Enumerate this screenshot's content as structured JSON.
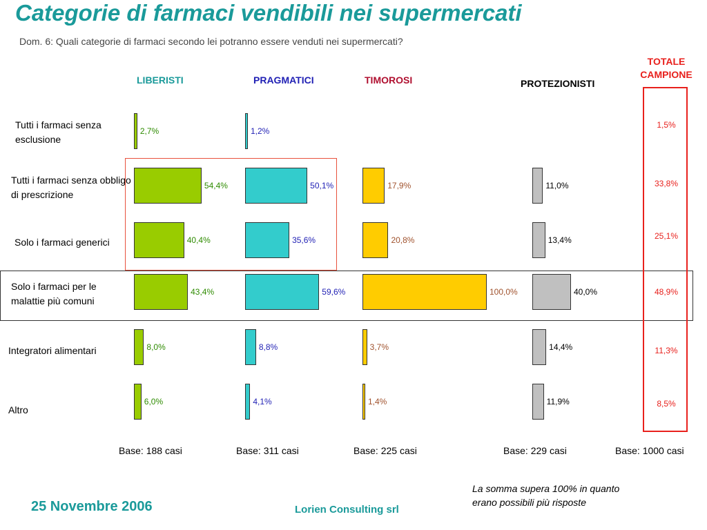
{
  "title": "Categorie di farmaci vendibili nei supermercati",
  "subtitle": "Dom. 6: Quali categorie di farmaci secondo lei potranno essere venduti nei supermercati?",
  "total": {
    "label_line1": "TOTALE",
    "label_line2": "CAMPIONE",
    "values": [
      "1,5%",
      "33,8%",
      "25,1%",
      "48,9%",
      "11,3%",
      "8,5%"
    ],
    "base": "Base: 1000 casi",
    "color": "#e8201c"
  },
  "rows": [
    "Tutti i farmaci senza esclusione",
    "Tutti i farmaci senza obbligo di prescrizione",
    "Solo i farmaci generici",
    "Solo i farmaci per le malattie più comuni",
    "Integratori alimentari",
    "Altro"
  ],
  "groups": [
    {
      "label": "LIBERISTI",
      "color": "#99cc00",
      "text_color": "#2e8b00",
      "label_color": "#1a9a9a",
      "base": "Base: 188 casi",
      "value_labels": [
        "2,7%",
        "54,4%",
        "40,4%",
        "43,4%",
        "8,0%",
        "6,0%"
      ]
    },
    {
      "label": "PRAGMATICI",
      "color": "#33cccc",
      "text_color": "#1f1fb4",
      "label_color": "#1f1fb4",
      "base": "Base: 311 casi",
      "value_labels": [
        "1,2%",
        "50,1%",
        "35,6%",
        "59,6%",
        "8,8%",
        "4,1%"
      ]
    },
    {
      "label": "TIMOROSI",
      "color": "#ffcc00",
      "text_color": "#a0522d",
      "label_color": "#b01030",
      "base": "Base: 225 casi",
      "value_labels": [
        "",
        "17,9%",
        "20,8%",
        "100,0%",
        "3,7%",
        "1,4%"
      ]
    },
    {
      "label": "PROTEZIONISTI",
      "color": "#c0c0c0",
      "text_color": "#000000",
      "label_color": "#000000",
      "base": "Base: 229 casi",
      "value_labels": [
        "",
        "11,0%",
        "13,4%",
        "40,0%",
        "14,4%",
        "11,9%"
      ]
    }
  ],
  "chart_data": {
    "type": "bar",
    "title": "Categorie di farmaci vendibili nei supermercati",
    "categories": [
      "Tutti i farmaci senza esclusione",
      "Tutti i farmaci senza obbligo di prescrizione",
      "Solo i farmaci generici",
      "Solo i farmaci per le malattie più comuni",
      "Integratori alimentari",
      "Altro"
    ],
    "series": [
      {
        "name": "LIBERISTI",
        "values": [
          2.7,
          54.4,
          40.4,
          43.4,
          8.0,
          6.0
        ]
      },
      {
        "name": "PRAGMATICI",
        "values": [
          1.2,
          50.1,
          35.6,
          59.6,
          8.8,
          4.1
        ]
      },
      {
        "name": "TIMOROSI",
        "values": [
          null,
          17.9,
          20.8,
          100.0,
          3.7,
          1.4
        ]
      },
      {
        "name": "PROTEZIONISTI",
        "values": [
          null,
          11.0,
          13.4,
          40.0,
          14.4,
          11.9
        ]
      },
      {
        "name": "TOTALE CAMPIONE",
        "values": [
          1.5,
          33.8,
          25.1,
          48.9,
          11.3,
          8.5
        ]
      }
    ],
    "orientation": "horizontal",
    "unit": "%"
  },
  "note_line1": "La somma supera 100% in quanto",
  "note_line2": "erano possibili più risposte",
  "date": "25 Novembre 2006",
  "footer": "Lorien Consulting srl"
}
